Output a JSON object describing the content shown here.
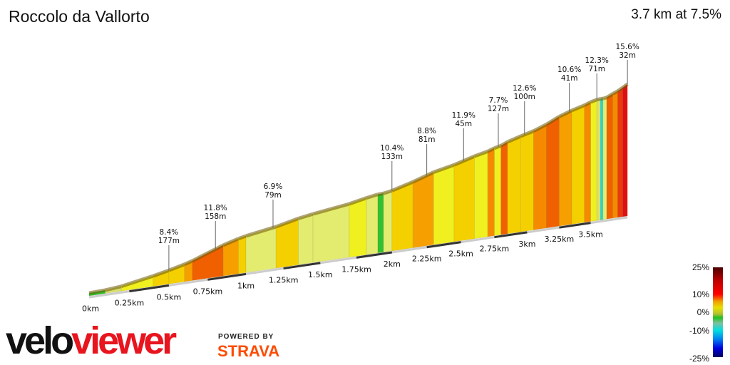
{
  "header": {
    "title": "Roccolo da Vallorto",
    "summary": "3.7 km at 7.5%"
  },
  "legend": {
    "labels": [
      "25%",
      "10%",
      "0%",
      "-10%",
      "-25%"
    ]
  },
  "branding": {
    "velo": "velo",
    "viewer": "viewer",
    "powered_by": "POWERED BY",
    "strava": "STRAVA"
  },
  "chart_data": {
    "type": "area",
    "xlabel": "",
    "ylabel": "",
    "x_ticks": [
      "0km",
      "0.25km",
      "0.5km",
      "0.75km",
      "1km",
      "1.25km",
      "1.5km",
      "1.75km",
      "2km",
      "2.25km",
      "2.5km",
      "2.75km",
      "3km",
      "3.25km",
      "3.5km"
    ],
    "segments": [
      [
        0,
        0.1,
        1
      ],
      [
        0.1,
        0.2,
        3
      ],
      [
        0.2,
        0.4,
        6
      ],
      [
        0.4,
        0.5,
        7
      ],
      [
        0.5,
        0.6,
        8
      ],
      [
        0.6,
        0.65,
        9.5
      ],
      [
        0.65,
        0.85,
        11.8
      ],
      [
        0.85,
        0.95,
        9
      ],
      [
        0.95,
        1.0,
        7
      ],
      [
        1.0,
        1.2,
        5
      ],
      [
        1.2,
        1.35,
        7
      ],
      [
        1.35,
        1.45,
        5
      ],
      [
        1.45,
        1.7,
        4
      ],
      [
        1.7,
        1.82,
        6
      ],
      [
        1.82,
        1.9,
        5
      ],
      [
        1.9,
        1.94,
        1
      ],
      [
        1.94,
        2.0,
        5
      ],
      [
        2.0,
        2.15,
        8
      ],
      [
        2.15,
        2.3,
        9.5
      ],
      [
        2.3,
        2.45,
        6
      ],
      [
        2.45,
        2.6,
        8
      ],
      [
        2.6,
        2.7,
        6
      ],
      [
        2.7,
        2.75,
        10
      ],
      [
        2.75,
        2.8,
        6
      ],
      [
        2.8,
        2.85,
        11.9
      ],
      [
        2.85,
        2.95,
        8
      ],
      [
        2.95,
        3.05,
        7
      ],
      [
        3.05,
        3.15,
        10
      ],
      [
        3.15,
        3.25,
        12.6
      ],
      [
        3.25,
        3.35,
        9
      ],
      [
        3.35,
        3.45,
        7
      ],
      [
        3.45,
        3.5,
        10
      ],
      [
        3.5,
        3.55,
        6
      ],
      [
        3.55,
        3.58,
        2
      ],
      [
        3.58,
        3.6,
        -1
      ],
      [
        3.6,
        3.63,
        4
      ],
      [
        3.63,
        3.68,
        12
      ],
      [
        3.68,
        3.72,
        10
      ],
      [
        3.72,
        3.76,
        14
      ],
      [
        3.76,
        3.8,
        15.6
      ]
    ],
    "annotations": [
      {
        "km": 0.5,
        "grade": "8.4%",
        "length": "177m"
      },
      {
        "km": 0.8,
        "grade": "11.8%",
        "length": "158m"
      },
      {
        "km": 1.18,
        "grade": "6.9%",
        "length": "79m"
      },
      {
        "km": 2.0,
        "grade": "10.4%",
        "length": "133m"
      },
      {
        "km": 2.25,
        "grade": "8.8%",
        "length": "81m"
      },
      {
        "km": 2.52,
        "grade": "11.9%",
        "length": "45m"
      },
      {
        "km": 2.78,
        "grade": "7.7%",
        "length": "127m"
      },
      {
        "km": 2.98,
        "grade": "12.6%",
        "length": "100m"
      },
      {
        "km": 3.33,
        "grade": "10.6%",
        "length": "41m"
      },
      {
        "km": 3.55,
        "grade": "12.3%",
        "length": "71m"
      },
      {
        "km": 3.8,
        "grade": "15.6%",
        "length": "32m"
      }
    ]
  }
}
